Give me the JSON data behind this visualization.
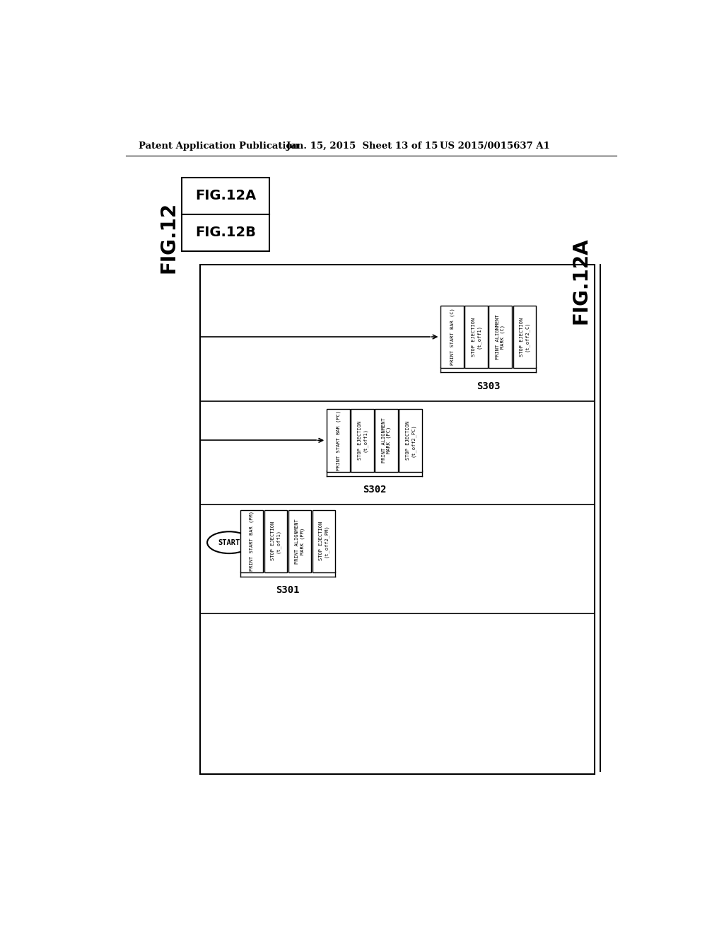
{
  "bg_color": "#ffffff",
  "header_left": "Patent Application Publication",
  "header_mid": "Jan. 15, 2015  Sheet 13 of 15",
  "header_right": "US 2015/0015637 A1",
  "fig_label_main": "FIG.12",
  "fig_label_12a": "FIG.12A",
  "fig_label_12b": "FIG.12B",
  "fig_label_right": "FIG.12A",
  "s301_label": "S301",
  "s302_label": "S302",
  "s303_label": "S303",
  "start_label": "START",
  "group1_boxes": [
    "PRINT START BAR (PM)",
    "STOP EJECTION\n(t_off1)",
    "PRINT ALIGNMENT\nMARK (PM)",
    "STOP EJECTION\n(t_off2_PM)"
  ],
  "group2_boxes": [
    "PRINT START BAR (PC)",
    "STOP EJECTION\n(t_off1)",
    "PRINT ALIGNMENT\nMARK (PC)",
    "STOP EJECTION\n(t_off2_PC)"
  ],
  "group3_boxes": [
    "PRINT START BAR (C)",
    "STOP EJECTION\n(t_off1)",
    "PRINT ALIGNMENT\nMARK (C)",
    "STOP EJECTION\n(t_off2_C)"
  ]
}
